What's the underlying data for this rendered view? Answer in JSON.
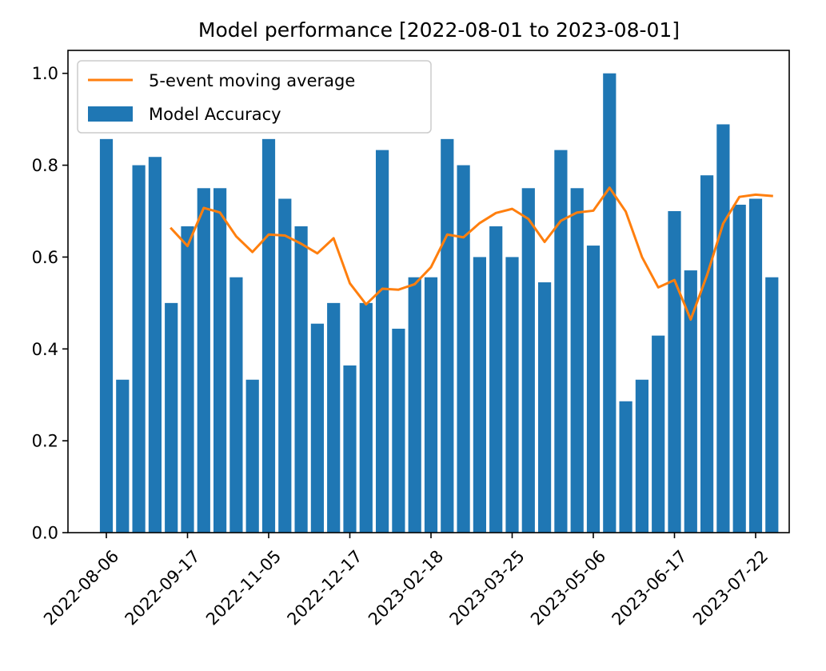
{
  "chart_data": {
    "type": "bar",
    "title": "Model performance [2022-08-01 to 2023-08-01]",
    "xlabel": "",
    "ylabel": "",
    "ylim": [
      0,
      1.05
    ],
    "yticks": [
      "0.0",
      "0.2",
      "0.4",
      "0.6",
      "0.8",
      "1.0"
    ],
    "xtick_labels": [
      "2022-08-06",
      "2022-09-17",
      "2022-11-05",
      "2022-12-17",
      "2023-02-18",
      "2023-03-25",
      "2023-05-06",
      "2023-06-17",
      "2023-07-22"
    ],
    "xtick_bar_index": [
      0,
      5,
      10,
      15,
      20,
      25,
      30,
      35,
      40
    ],
    "legend": {
      "placement": "upper-left",
      "entries": [
        "5-event moving average",
        "Model Accuracy"
      ]
    },
    "colors": {
      "bar": "#1f77b4",
      "line": "#ff7f0e"
    },
    "series": [
      {
        "name": "Model Accuracy",
        "kind": "bar",
        "values": [
          0.857,
          0.333,
          0.8,
          0.818,
          0.5,
          0.667,
          0.75,
          0.75,
          0.556,
          0.333,
          0.857,
          0.727,
          0.667,
          0.455,
          0.5,
          0.364,
          0.5,
          0.833,
          0.444,
          0.556,
          0.556,
          0.857,
          0.8,
          0.6,
          0.667,
          0.6,
          0.75,
          0.545,
          0.833,
          0.75,
          0.625,
          1.0,
          0.286,
          0.333,
          0.429,
          0.7,
          0.571,
          0.778,
          0.889,
          0.714,
          0.727,
          0.556
        ]
      },
      {
        "name": "5-event moving average",
        "kind": "line",
        "start_index": 4,
        "values": [
          0.662,
          0.624,
          0.707,
          0.697,
          0.645,
          0.611,
          0.649,
          0.647,
          0.629,
          0.608,
          0.641,
          0.543,
          0.497,
          0.531,
          0.529,
          0.541,
          0.578,
          0.649,
          0.643,
          0.674,
          0.696,
          0.705,
          0.683,
          0.633,
          0.679,
          0.697,
          0.701,
          0.751,
          0.699,
          0.6,
          0.534,
          0.55,
          0.464,
          0.56,
          0.673,
          0.731,
          0.736,
          0.733
        ]
      }
    ]
  }
}
